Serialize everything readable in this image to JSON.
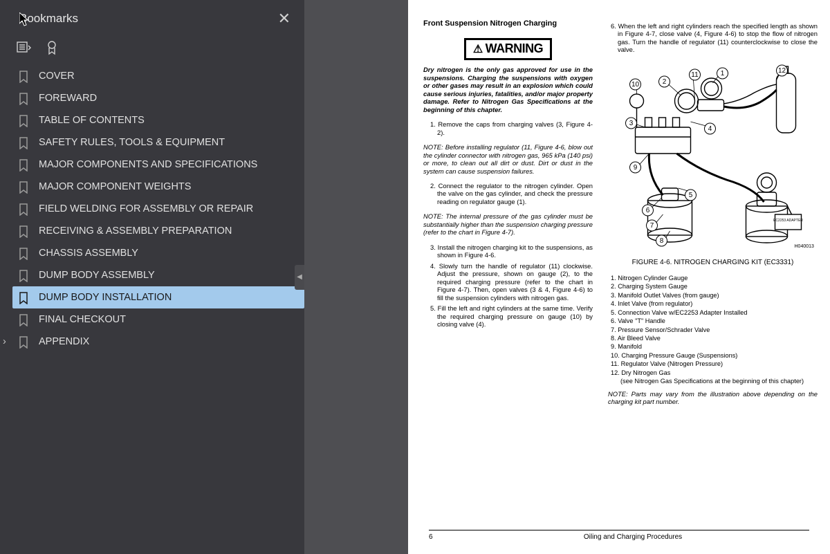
{
  "sidebar": {
    "title": "Bookmarks",
    "bookmarks": [
      {
        "label": "COVER",
        "selected": false,
        "expandable": false
      },
      {
        "label": "FOREWARD",
        "selected": false,
        "expandable": false
      },
      {
        "label": "TABLE OF CONTENTS",
        "selected": false,
        "expandable": false
      },
      {
        "label": "SAFETY RULES, TOOLS & EQUIPMENT",
        "selected": false,
        "expandable": false
      },
      {
        "label": "MAJOR COMPONENTS AND SPECIFICATIONS",
        "selected": false,
        "expandable": false
      },
      {
        "label": "MAJOR COMPONENT WEIGHTS",
        "selected": false,
        "expandable": false
      },
      {
        "label": "FIELD WELDING FOR ASSEMBLY OR REPAIR",
        "selected": false,
        "expandable": false
      },
      {
        "label": "RECEIVING & ASSEMBLY PREPARATION",
        "selected": false,
        "expandable": false
      },
      {
        "label": "CHASSIS ASSEMBLY",
        "selected": false,
        "expandable": false
      },
      {
        "label": "DUMP BODY ASSEMBLY",
        "selected": false,
        "expandable": false
      },
      {
        "label": "DUMP BODY INSTALLATION",
        "selected": true,
        "expandable": false
      },
      {
        "label": "FINAL CHECKOUT",
        "selected": false,
        "expandable": false
      },
      {
        "label": "APPENDIX",
        "selected": false,
        "expandable": true
      }
    ]
  },
  "document": {
    "heading": "Front Suspension Nitrogen Charging",
    "warning_label": "WARNING",
    "warning_text": "Dry nitrogen is the only gas approved for use in the suspensions. Charging the suspensions with oxygen or other gases may result in an explosion which could cause serious injuries, fatalities, and/or major property damage. Refer to Nitrogen Gas Specifications at the beginning of this chapter.",
    "step1": "1. Remove the caps from charging valves (3, Figure 4-2).",
    "note1": "NOTE: Before installing regulator (11, Figure 4-6, blow out the cylinder connector with nitrogen gas, 965 kPa (140 psi) or more, to clean out all dirt or dust. Dirt or dust in the system can cause suspension failures.",
    "step2": "2. Connect the regulator to the nitrogen cylinder. Open the valve on the gas cylinder, and check the pressure reading on regulator gauge (1).",
    "note2": "NOTE: The internal pressure of the gas cylinder must be substantially higher than the suspension charging pressure (refer to the chart in Figure 4-7).",
    "step3": "3. Install the nitrogen charging kit to the suspensions, as shown in Figure 4-6.",
    "step4": "4. Slowly turn the handle of regulator (11) clockwise. Adjust the pressure, shown on gauge (2), to the required charging pressure (refer to the chart in Figure 4-7). Then, open valves (3 & 4, Figure 4-6) to fill the suspension cylinders with nitrogen gas.",
    "step5": "5. Fill the left and right cylinders at the same time. Verify the required charging pressure on gauge (10) by closing valve (4).",
    "step6": "6. When the left and right cylinders reach the specified length as shown in Figure 4-7, close valve (4, Figure 4-6) to stop the flow of nitrogen gas. Turn the handle of regulator (11) counterclockwise to close the valve.",
    "figure_caption": "FIGURE 4-6. NITROGEN CHARGING KIT (EC3331)",
    "figure_code": "H040013",
    "adapter_label": "EC2253 ADAPTER",
    "parts": [
      "1. Nitrogen Cylinder Gauge",
      "2. Charging System Gauge",
      "3. Manifold Outlet Valves (from gauge)",
      "4. Inlet Valve (from regulator)",
      "5. Connection Valve w/EC2253 Adapter Installed",
      "6. Valve \"T\" Handle",
      "7. Pressure Sensor/Schrader Valve",
      "8. Air Bleed Valve",
      "9. Manifold",
      "10. Charging Pressure Gauge (Suspensions)",
      "11. Regulator Valve (Nitrogen Pressure)",
      "12. Dry Nitrogen Gas",
      "      (see Nitrogen Gas Specifications at the beginning of this chapter)"
    ],
    "note3": "NOTE: Parts may vary from the illustration above depending on the charging kit part number.",
    "footer_page": "6",
    "footer_title": "Oiling and Charging Procedures"
  },
  "colors": {
    "sidebar_bg": "#38383d",
    "selected_bg": "#a3caec",
    "page_bg": "#ffffff",
    "divider_bg": "#4e4e52"
  }
}
